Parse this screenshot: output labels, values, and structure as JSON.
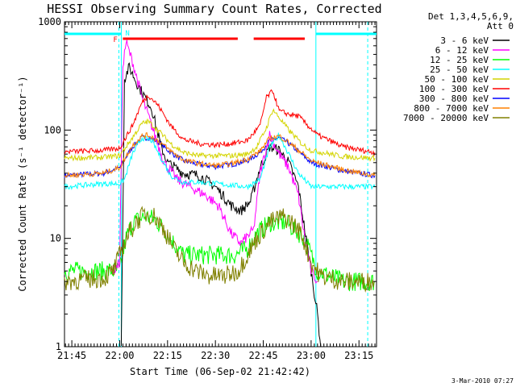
{
  "chart_data": {
    "type": "line",
    "title": "HESSI Observing Summary Count Rates, Corrected",
    "xlabel": "Start Time (06-Sep-02 21:42:42)",
    "ylabel": "Corrected Count Rate (s⁻¹ detector⁻¹)",
    "y_scale": "log",
    "ylim": [
      1,
      1000
    ],
    "xlim": [
      "21:42:42",
      "23:20:30"
    ],
    "x_ticks": [
      "21:45",
      "22:00",
      "22:15",
      "22:30",
      "22:45",
      "23:00",
      "23:15"
    ],
    "y_ticks": [
      "1",
      "10",
      "100",
      "1000"
    ],
    "grid": false,
    "legend_position": "right-outside",
    "legend_header": [
      "Det 1,3,4,5,6,9,",
      "Att 0"
    ],
    "series": [
      {
        "name": "3 - 6 keV",
        "color": "#000000",
        "points": [
          [
            "22:00:30",
            1
          ],
          [
            "22:01:30",
            300
          ],
          [
            "22:03:00",
            380
          ],
          [
            "22:06:00",
            250
          ],
          [
            "22:10:00",
            160
          ],
          [
            "22:13:00",
            70
          ],
          [
            "22:15:00",
            50
          ],
          [
            "22:20:00",
            40
          ],
          [
            "22:25:00",
            38
          ],
          [
            "22:30:00",
            30
          ],
          [
            "22:35:00",
            20
          ],
          [
            "22:38:00",
            18
          ],
          [
            "22:41:00",
            22
          ],
          [
            "22:44:00",
            45
          ],
          [
            "22:47:00",
            70
          ],
          [
            "22:50:00",
            65
          ],
          [
            "22:53:00",
            50
          ],
          [
            "22:56:00",
            30
          ],
          [
            "22:58:00",
            12
          ],
          [
            "23:00:00",
            5
          ],
          [
            "23:02:00",
            2
          ],
          [
            "23:03:00",
            1
          ]
        ]
      },
      {
        "name": "6 - 12 keV",
        "color": "#ff00ff",
        "points": [
          [
            "21:58:00",
            5
          ],
          [
            "22:00:00",
            6
          ],
          [
            "22:01:00",
            400
          ],
          [
            "22:02:00",
            650
          ],
          [
            "22:04:00",
            430
          ],
          [
            "22:07:00",
            200
          ],
          [
            "22:11:00",
            90
          ],
          [
            "22:14:00",
            50
          ],
          [
            "22:18:00",
            35
          ],
          [
            "22:22:00",
            30
          ],
          [
            "22:27:00",
            25
          ],
          [
            "22:31:00",
            20
          ],
          [
            "22:35:00",
            11
          ],
          [
            "22:38:00",
            9
          ],
          [
            "22:42:00",
            12
          ],
          [
            "22:44:00",
            40
          ],
          [
            "22:47:00",
            90
          ],
          [
            "22:50:00",
            60
          ],
          [
            "22:53:00",
            45
          ],
          [
            "22:56:00",
            25
          ],
          [
            "22:58:00",
            10
          ],
          [
            "23:00:00",
            5
          ],
          [
            "23:02:00",
            4
          ]
        ]
      },
      {
        "name": "12 - 25 keV",
        "color": "#00ff00",
        "points": [
          [
            "21:42:42",
            5
          ],
          [
            "21:55:00",
            5
          ],
          [
            "22:00:00",
            5
          ],
          [
            "22:02:00",
            10
          ],
          [
            "22:04:00",
            14
          ],
          [
            "22:08:00",
            16
          ],
          [
            "22:11:00",
            15
          ],
          [
            "22:14:00",
            12
          ],
          [
            "22:17:00",
            9
          ],
          [
            "22:20:00",
            7
          ],
          [
            "22:25:00",
            7
          ],
          [
            "22:32:00",
            7
          ],
          [
            "22:36:00",
            7
          ],
          [
            "22:40:00",
            8
          ],
          [
            "22:43:00",
            11
          ],
          [
            "22:47:00",
            14
          ],
          [
            "22:52:00",
            14
          ],
          [
            "22:55:00",
            12
          ],
          [
            "22:58:00",
            10
          ],
          [
            "23:00:00",
            7
          ],
          [
            "23:02:00",
            5
          ],
          [
            "23:10:00",
            4
          ],
          [
            "23:20:00",
            4
          ]
        ]
      },
      {
        "name": "25 - 50 keV",
        "color": "#00ffff",
        "points": [
          [
            "21:42:42",
            30
          ],
          [
            "21:55:00",
            32
          ],
          [
            "22:00:00",
            32
          ],
          [
            "22:01:30",
            35
          ],
          [
            "22:04:00",
            60
          ],
          [
            "22:07:00",
            85
          ],
          [
            "22:10:00",
            80
          ],
          [
            "22:13:00",
            55
          ],
          [
            "22:16:00",
            38
          ],
          [
            "22:20:00",
            33
          ],
          [
            "22:25:00",
            33
          ],
          [
            "22:30:00",
            32
          ],
          [
            "22:35:00",
            31
          ],
          [
            "22:40:00",
            30
          ],
          [
            "22:44:00",
            35
          ],
          [
            "22:47:00",
            70
          ],
          [
            "22:50:00",
            90
          ],
          [
            "22:53:00",
            60
          ],
          [
            "22:56:00",
            40
          ],
          [
            "23:00:00",
            30
          ],
          [
            "23:10:00",
            30
          ],
          [
            "23:20:00",
            30
          ]
        ]
      },
      {
        "name": "50 - 100 keV",
        "color": "#d4d400",
        "points": [
          [
            "21:42:42",
            55
          ],
          [
            "21:55:00",
            56
          ],
          [
            "22:00:00",
            58
          ],
          [
            "22:04:00",
            85
          ],
          [
            "22:07:00",
            115
          ],
          [
            "22:09:00",
            120
          ],
          [
            "22:12:00",
            100
          ],
          [
            "22:16:00",
            75
          ],
          [
            "22:20:00",
            62
          ],
          [
            "22:25:00",
            58
          ],
          [
            "22:30:00",
            58
          ],
          [
            "22:35:00",
            58
          ],
          [
            "22:40:00",
            60
          ],
          [
            "22:43:00",
            70
          ],
          [
            "22:46:00",
            105
          ],
          [
            "22:48:00",
            155
          ],
          [
            "22:50:00",
            130
          ],
          [
            "22:53:00",
            100
          ],
          [
            "22:57:00",
            75
          ],
          [
            "23:00:00",
            65
          ],
          [
            "23:10:00",
            57
          ],
          [
            "23:20:00",
            55
          ]
        ]
      },
      {
        "name": "100 - 300 keV",
        "color": "#ff0000",
        "points": [
          [
            "21:42:42",
            63
          ],
          [
            "21:55:00",
            65
          ],
          [
            "22:00:00",
            68
          ],
          [
            "22:04:00",
            110
          ],
          [
            "22:07:00",
            180
          ],
          [
            "22:09:00",
            210
          ],
          [
            "22:12:00",
            170
          ],
          [
            "22:16:00",
            110
          ],
          [
            "22:20:00",
            82
          ],
          [
            "22:25:00",
            75
          ],
          [
            "22:30:00",
            73
          ],
          [
            "22:35:00",
            75
          ],
          [
            "22:40:00",
            80
          ],
          [
            "22:44:00",
            110
          ],
          [
            "22:46:00",
            200
          ],
          [
            "22:48:00",
            230
          ],
          [
            "22:50:00",
            150
          ],
          [
            "22:53:00",
            140
          ],
          [
            "22:56:00",
            135
          ],
          [
            "22:59:00",
            110
          ],
          [
            "23:02:00",
            90
          ],
          [
            "23:10:00",
            70
          ],
          [
            "23:20:00",
            62
          ]
        ]
      },
      {
        "name": "300 - 800 keV",
        "color": "#0000ff",
        "points": [
          [
            "21:42:42",
            38
          ],
          [
            "21:55:00",
            40
          ],
          [
            "22:00:00",
            45
          ],
          [
            "22:04:00",
            70
          ],
          [
            "22:07:00",
            85
          ],
          [
            "22:09:00",
            85
          ],
          [
            "22:12:00",
            78
          ],
          [
            "22:16:00",
            62
          ],
          [
            "22:20:00",
            52
          ],
          [
            "22:25:00",
            48
          ],
          [
            "22:30:00",
            46
          ],
          [
            "22:35:00",
            48
          ],
          [
            "22:40:00",
            52
          ],
          [
            "22:44:00",
            62
          ],
          [
            "22:47:00",
            80
          ],
          [
            "22:50:00",
            85
          ],
          [
            "22:53:00",
            75
          ],
          [
            "22:57:00",
            60
          ],
          [
            "23:00:00",
            50
          ],
          [
            "23:10:00",
            42
          ],
          [
            "23:20:00",
            38
          ]
        ]
      },
      {
        "name": "800 - 7000 keV",
        "color": "#ff8000",
        "points": [
          [
            "21:42:42",
            38
          ],
          [
            "21:55:00",
            40
          ],
          [
            "22:00:00",
            45
          ],
          [
            "22:04:00",
            72
          ],
          [
            "22:07:00",
            88
          ],
          [
            "22:09:00",
            90
          ],
          [
            "22:12:00",
            80
          ],
          [
            "22:16:00",
            64
          ],
          [
            "22:20:00",
            53
          ],
          [
            "22:25:00",
            49
          ],
          [
            "22:30:00",
            47
          ],
          [
            "22:35:00",
            49
          ],
          [
            "22:40:00",
            54
          ],
          [
            "22:44:00",
            64
          ],
          [
            "22:47:00",
            84
          ],
          [
            "22:50:00",
            88
          ],
          [
            "22:53:00",
            77
          ],
          [
            "22:57:00",
            62
          ],
          [
            "23:00:00",
            52
          ],
          [
            "23:10:00",
            43
          ],
          [
            "23:20:00",
            38
          ]
        ]
      },
      {
        "name": "7000 - 20000 keV",
        "color": "#808000",
        "points": [
          [
            "21:42:42",
            4
          ],
          [
            "21:50:00",
            4.2
          ],
          [
            "21:55:00",
            4.3
          ],
          [
            "21:58:00",
            5
          ],
          [
            "22:00:00",
            7
          ],
          [
            "22:02:00",
            10
          ],
          [
            "22:05:00",
            14
          ],
          [
            "22:08:00",
            17
          ],
          [
            "22:11:00",
            16
          ],
          [
            "22:14:00",
            12
          ],
          [
            "22:17:00",
            8
          ],
          [
            "22:20:00",
            6
          ],
          [
            "22:24:00",
            5
          ],
          [
            "22:28:00",
            4.5
          ],
          [
            "22:33:00",
            4.5
          ],
          [
            "22:37:00",
            5
          ],
          [
            "22:40:00",
            7
          ],
          [
            "22:43:00",
            10
          ],
          [
            "22:47:00",
            14
          ],
          [
            "22:51:00",
            16
          ],
          [
            "22:54:00",
            14
          ],
          [
            "22:57:00",
            11
          ],
          [
            "23:00:00",
            6
          ],
          [
            "23:03:00",
            4.5
          ],
          [
            "23:10:00",
            4
          ],
          [
            "23:20:00",
            4
          ]
        ]
      }
    ],
    "annotations": {
      "night_bars": [
        [
          "21:42:42",
          "22:00:30"
        ],
        [
          "23:01:30",
          "23:20:30"
        ]
      ],
      "night_bar_color": "#00ffff",
      "saa_label": "N",
      "flare_bars": [
        [
          "22:01:00",
          "22:37:00"
        ],
        [
          "22:42:00",
          "22:58:00"
        ]
      ],
      "flare_bar_color": "#ff0000",
      "flare_label": "F",
      "vlines": [
        [
          "22:00:30",
          "#00ffff"
        ],
        [
          "23:01:30",
          "#00ffff"
        ]
      ],
      "dashed_vlines": [
        [
          "22:00:30",
          "#00ffff"
        ],
        [
          "23:18:30",
          "#00ffff"
        ]
      ]
    }
  },
  "timestamp": "3-Mar-2010 07:27"
}
